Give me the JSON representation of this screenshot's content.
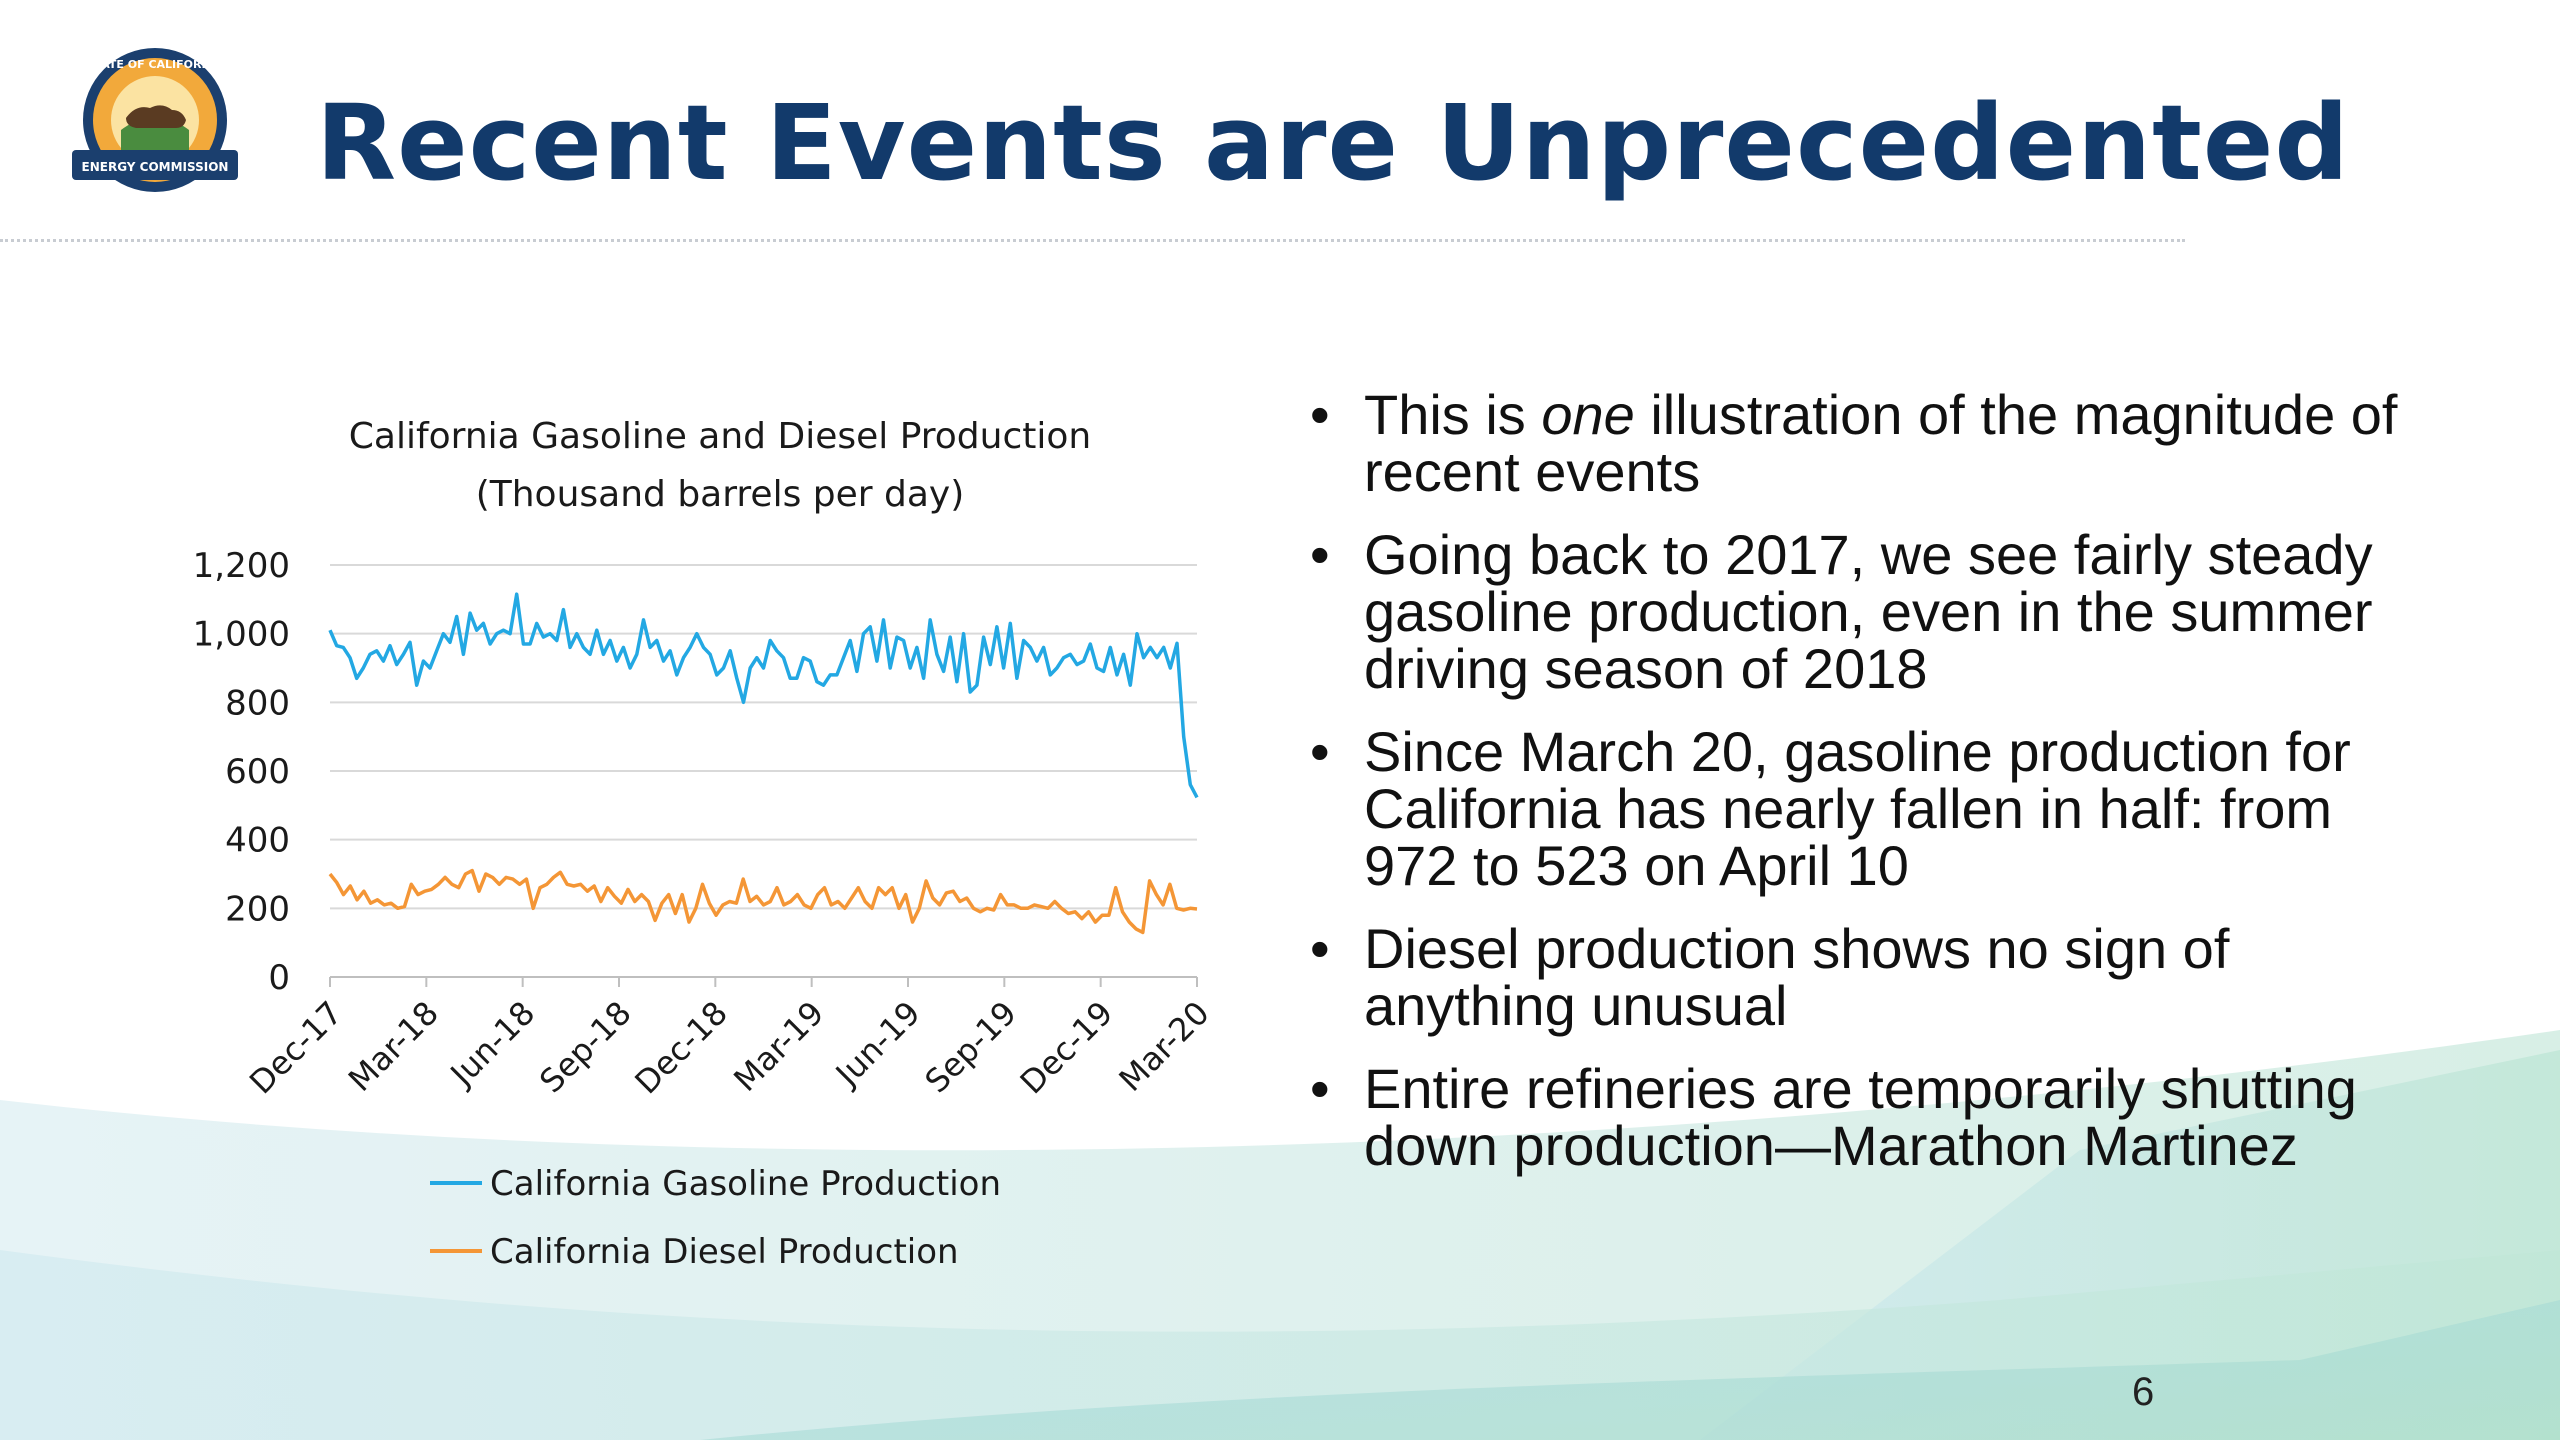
{
  "slide": {
    "title": "Recent Events are Unprecedented",
    "page_number": "6",
    "seal": {
      "top_text": "STATE OF CALIFORNIA",
      "banner_text": "ENERGY COMMISSION"
    },
    "colors": {
      "title": "#123a6b",
      "gasoline": "#23a8e3",
      "diesel": "#f49636",
      "gridline": "#d9d9d9"
    }
  },
  "chart_data": {
    "type": "line",
    "title": "California Gasoline and Diesel Production",
    "subtitle": "(Thousand barrels per day)",
    "ylim": [
      0,
      1200
    ],
    "y_ticks": [
      "0",
      "200",
      "400",
      "600",
      "800",
      "1,000",
      "1,200"
    ],
    "x_ticks": [
      "Dec-17",
      "Mar-18",
      "Jun-18",
      "Sep-18",
      "Dec-18",
      "Mar-19",
      "Jun-19",
      "Sep-19",
      "Dec-19",
      "Mar-20"
    ],
    "grid": true,
    "legend_position": "bottom",
    "series": [
      {
        "name": "California Gasoline Production",
        "color": "#23a8e3",
        "values": [
          1010,
          965,
          960,
          930,
          870,
          900,
          940,
          950,
          920,
          965,
          910,
          940,
          975,
          850,
          920,
          900,
          950,
          1000,
          975,
          1050,
          940,
          1060,
          1010,
          1030,
          970,
          1000,
          1010,
          1000,
          1115,
          970,
          970,
          1030,
          990,
          1000,
          980,
          1070,
          960,
          1000,
          960,
          940,
          1010,
          940,
          980,
          920,
          960,
          900,
          940,
          1040,
          960,
          980,
          920,
          950,
          880,
          930,
          960,
          1000,
          960,
          940,
          880,
          900,
          950,
          870,
          800,
          900,
          930,
          900,
          980,
          950,
          930,
          870,
          870,
          930,
          920,
          860,
          850,
          880,
          880,
          930,
          980,
          890,
          1000,
          1020,
          920,
          1040,
          900,
          990,
          980,
          900,
          960,
          870,
          1040,
          940,
          890,
          990,
          860,
          1000,
          830,
          850,
          990,
          910,
          1020,
          900,
          1030,
          870,
          980,
          960,
          920,
          960,
          880,
          900,
          930,
          940,
          910,
          920,
          970,
          900,
          890,
          960,
          880,
          940,
          850,
          1000,
          930,
          960,
          930,
          960,
          900,
          972,
          700,
          560,
          523
        ]
      },
      {
        "name": "California Diesel Production",
        "color": "#f49636",
        "values": [
          300,
          275,
          240,
          265,
          225,
          250,
          215,
          225,
          210,
          215,
          200,
          205,
          270,
          240,
          250,
          255,
          270,
          290,
          270,
          260,
          300,
          310,
          250,
          300,
          290,
          270,
          290,
          285,
          270,
          285,
          200,
          260,
          270,
          290,
          305,
          270,
          265,
          270,
          250,
          265,
          220,
          260,
          235,
          215,
          255,
          220,
          240,
          220,
          165,
          215,
          240,
          185,
          240,
          160,
          200,
          270,
          215,
          180,
          210,
          220,
          215,
          285,
          220,
          235,
          210,
          220,
          260,
          210,
          220,
          240,
          210,
          200,
          240,
          260,
          210,
          220,
          200,
          230,
          260,
          220,
          200,
          260,
          240,
          260,
          200,
          240,
          160,
          200,
          280,
          230,
          210,
          245,
          250,
          220,
          230,
          200,
          190,
          200,
          195,
          240,
          210,
          210,
          200,
          200,
          210,
          205,
          200,
          220,
          200,
          185,
          190,
          170,
          190,
          160,
          180,
          180,
          260,
          190,
          160,
          140,
          130,
          280,
          240,
          210,
          270,
          200,
          195,
          200,
          198
        ]
      }
    ]
  },
  "bullets": [
    {
      "before": "This is ",
      "emphasis": "one",
      "after": " illustration of the magnitude of recent events"
    },
    {
      "before": "Going back to 2017, we see fairly steady gasoline production, even in the summer driving season of 2018",
      "emphasis": "",
      "after": ""
    },
    {
      "before": "Since March 20, gasoline production for California has nearly fallen in half: from 972 to 523 on April 10",
      "emphasis": "",
      "after": ""
    },
    {
      "before": "Diesel production shows no sign of anything unusual",
      "emphasis": "",
      "after": ""
    },
    {
      "before": "Entire refineries are temporarily shutting down production—Marathon Martinez",
      "emphasis": "",
      "after": ""
    }
  ],
  "bullet_symbol": "•"
}
